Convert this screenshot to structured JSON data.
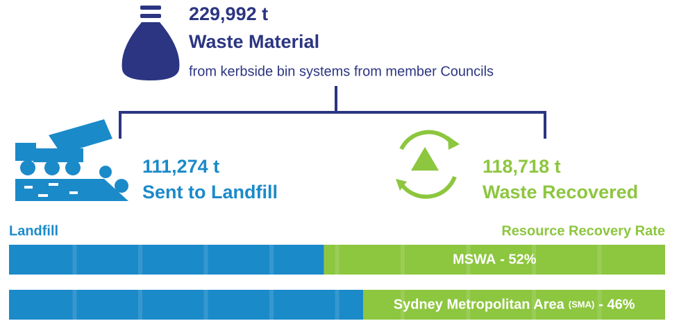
{
  "header": {
    "amount": "229,992 t",
    "title": "Waste Material",
    "subtitle": "from kerbside bin systems from member Councils"
  },
  "landfill": {
    "amount": "111,274 t",
    "label": "Sent to Landfill"
  },
  "recovered": {
    "amount": "118,718 t",
    "label": "Waste Recovered"
  },
  "bar_legend": {
    "left": "Landfill",
    "right": "Resource Recovery Rate"
  },
  "bars": [
    {
      "name": "MSWA",
      "value_label": "- 52%",
      "value": 52
    },
    {
      "name": "Sydney Metropolitan Area",
      "abbr": "(SMA)",
      "value_label": "- 46%",
      "value": 46
    }
  ],
  "colors": {
    "navy": "#2b3582",
    "landfill": "#1b8ac9",
    "recovery": "#8dc63f"
  }
}
